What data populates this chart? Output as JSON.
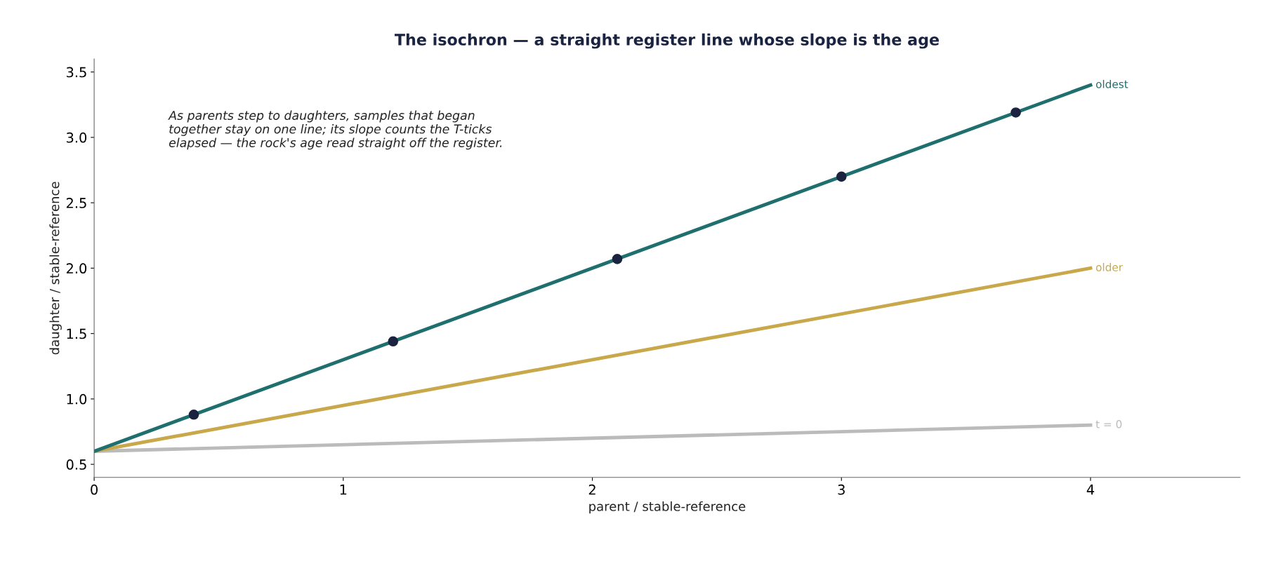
{
  "chart_data": {
    "type": "line",
    "title": "The isochron — a straight register line whose slope is the age",
    "xlabel": "parent / stable-reference",
    "ylabel": "daughter / stable-reference",
    "series": [
      {
        "name": "t = 0",
        "color": "#bbbbbb",
        "x": [
          0,
          4
        ],
        "values": [
          0.6,
          0.8
        ]
      },
      {
        "name": "older",
        "color": "#c8a84b",
        "x": [
          0,
          4
        ],
        "values": [
          0.6,
          2.0
        ]
      },
      {
        "name": "oldest",
        "color": "#1f6f6f",
        "x": [
          0,
          4
        ],
        "values": [
          0.6,
          3.4
        ]
      },
      {
        "type": "scatter",
        "marker": "circle",
        "color": "#1a2340",
        "x": [
          0.4,
          1.2,
          2.1,
          3.0,
          3.7
        ],
        "values": [
          0.88,
          1.44,
          2.07,
          2.7,
          3.19
        ]
      }
    ],
    "xlim": [
      0,
      4.6
    ],
    "xticks": [
      0,
      1,
      2,
      3,
      4
    ],
    "ylim": [
      0.4,
      3.6
    ],
    "yticks": [
      0.5,
      {
        "value": 1,
        "label": "1.0"
      },
      1.5,
      {
        "value": 2,
        "label": "2.0"
      },
      2.5,
      {
        "value": 3,
        "label": "3.0"
      },
      3.5
    ],
    "grid": false,
    "legend": false,
    "marker": "none",
    "annotations": [
      "As parents step to daughters, samples that began\ntogether stay on one line; its slope counts the T-ticks\nelapsed — the rock's age read straight off the register."
    ]
  }
}
